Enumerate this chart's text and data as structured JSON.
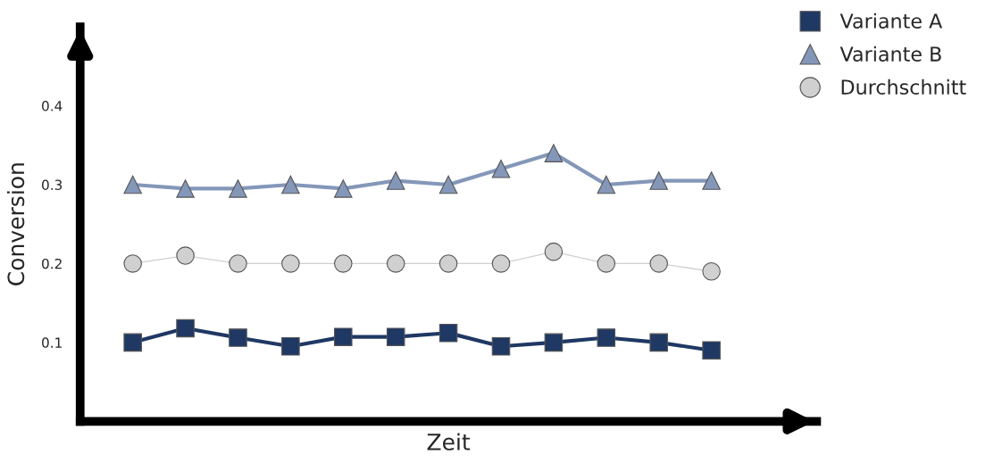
{
  "chart_data": {
    "type": "line",
    "xlabel": "Zeit",
    "ylabel": "Conversion",
    "categories": [
      null,
      null,
      null,
      null,
      null,
      null,
      null,
      null,
      null,
      null,
      null,
      null
    ],
    "ylim": [
      0,
      0.5
    ],
    "yticks": [
      0.1,
      0.2,
      0.3,
      0.4
    ],
    "grid": false,
    "legend": "top right",
    "series": [
      {
        "name": "Variante A",
        "color": "#1f3864",
        "marker": "square",
        "values": [
          0.1,
          0.118,
          0.106,
          0.095,
          0.107,
          0.107,
          0.112,
          0.095,
          0.1,
          0.106,
          0.1,
          0.09
        ]
      },
      {
        "name": "Variante B",
        "color": "#8497b9",
        "marker": "triangle",
        "values": [
          0.3,
          0.295,
          0.295,
          0.3,
          0.295,
          0.305,
          0.3,
          0.32,
          0.34,
          0.3,
          0.305,
          0.305
        ]
      },
      {
        "name": "Durchschnitt",
        "color": "#d0d0d0",
        "marker": "circle",
        "values": [
          0.2,
          0.21,
          0.2,
          0.2,
          0.2,
          0.2,
          0.2,
          0.2,
          0.215,
          0.2,
          0.2,
          0.19
        ]
      }
    ]
  }
}
